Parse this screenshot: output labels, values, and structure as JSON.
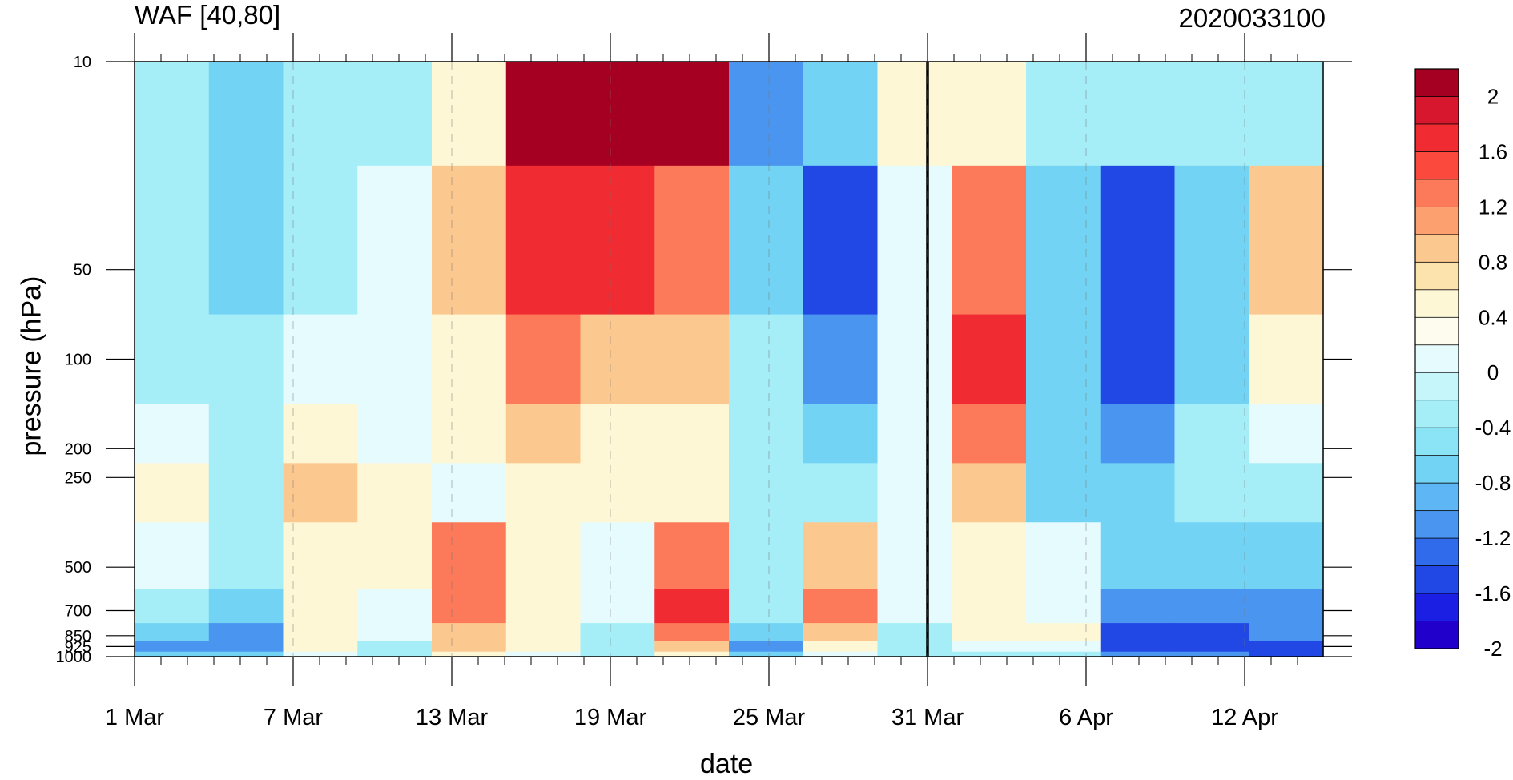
{
  "chart_data": {
    "type": "heatmap",
    "title_left": "WAF [40,80]",
    "title_right": "2020033100",
    "xlabel": "date",
    "ylabel": "pressure (hPa)",
    "x_ticks": [
      "1 Mar",
      "7 Mar",
      "13 Mar",
      "19 Mar",
      "25 Mar",
      "31 Mar",
      "6 Apr",
      "12 Apr"
    ],
    "y_ticks": [
      "10",
      "50",
      "100",
      "200",
      "250",
      "500",
      "700",
      "850",
      "925",
      "1000"
    ],
    "colorbar_labels": [
      "2",
      "1.6",
      "1.2",
      "0.8",
      "0.4",
      "0",
      "-0.4",
      "-0.8",
      "-1.2",
      "-1.6",
      "-2"
    ],
    "colorbar_colors": [
      "#a50021",
      "#d7172e",
      "#f02b32",
      "#fb4a3d",
      "#fc7a59",
      "#fba06e",
      "#fbc98f",
      "#fce3ae",
      "#fdf7d6",
      "#fefcee",
      "#e6fbfd",
      "#c6f6fa",
      "#a5eef8",
      "#8be3f6",
      "#72d3f5",
      "#5eb6f4",
      "#4a95ef",
      "#2f6bea",
      "#2147e4",
      "#1b1fe4",
      "#2200cc"
    ],
    "x": [
      "1 Mar",
      "4 Mar",
      "7 Mar",
      "10 Mar",
      "13 Mar",
      "16 Mar",
      "19 Mar",
      "22 Mar",
      "25 Mar",
      "28 Mar",
      "31 Mar",
      "3 Apr",
      "6 Apr",
      "9 Apr",
      "12 Apr",
      "15 Apr"
    ],
    "pressure_levels": [
      10,
      50,
      100,
      200,
      250,
      500,
      700,
      850,
      925,
      1000
    ],
    "values": [
      [
        -0.4,
        -0.8,
        -0.4,
        -0.4,
        0.4,
        2.0,
        2.0,
        2.0,
        -1.2,
        -0.8,
        0.4,
        0.4,
        -0.4,
        -0.4,
        -0.4,
        -0.4
      ],
      [
        -0.4,
        -0.8,
        -0.4,
        0.0,
        0.8,
        1.6,
        1.6,
        1.2,
        -0.8,
        -1.6,
        0.0,
        1.2,
        -0.8,
        -1.6,
        -0.8,
        0.8
      ],
      [
        -0.4,
        -0.4,
        0.0,
        0.0,
        0.4,
        1.2,
        0.8,
        0.8,
        -0.4,
        -1.2,
        0.0,
        1.6,
        -0.8,
        -1.6,
        -0.8,
        0.4
      ],
      [
        0.0,
        -0.4,
        0.4,
        0.0,
        0.4,
        0.8,
        0.4,
        0.4,
        -0.4,
        -0.8,
        0.0,
        1.2,
        -0.8,
        -1.2,
        -0.4,
        0.0
      ],
      [
        0.4,
        -0.4,
        0.8,
        0.4,
        0.0,
        0.4,
        0.4,
        0.4,
        -0.4,
        -0.4,
        0.0,
        0.8,
        -0.8,
        -0.8,
        -0.4,
        -0.4
      ],
      [
        0.0,
        -0.4,
        0.4,
        0.4,
        1.2,
        0.4,
        0.0,
        1.2,
        -0.4,
        0.8,
        0.0,
        0.4,
        0.0,
        -0.8,
        -0.8,
        -0.8
      ],
      [
        -0.4,
        -0.8,
        0.4,
        0.0,
        1.2,
        0.4,
        0.0,
        1.6,
        -0.4,
        1.2,
        0.0,
        0.4,
        0.0,
        -1.2,
        -1.2,
        -1.2
      ],
      [
        -0.8,
        -1.2,
        0.4,
        0.0,
        0.8,
        0.4,
        -0.4,
        1.2,
        -0.8,
        0.8,
        -0.4,
        0.4,
        0.4,
        -1.6,
        -1.6,
        -1.2
      ],
      [
        -1.2,
        -1.2,
        0.4,
        -0.4,
        0.8,
        0.4,
        -0.4,
        0.8,
        -1.2,
        0.4,
        -0.4,
        0.0,
        0.0,
        -1.6,
        -1.6,
        -1.6
      ],
      [
        -0.8,
        -0.8,
        0.0,
        -0.4,
        0.4,
        0.0,
        -0.4,
        0.4,
        -0.8,
        0.0,
        -0.4,
        -0.4,
        -0.4,
        -1.2,
        -1.2,
        -1.6
      ]
    ]
  }
}
